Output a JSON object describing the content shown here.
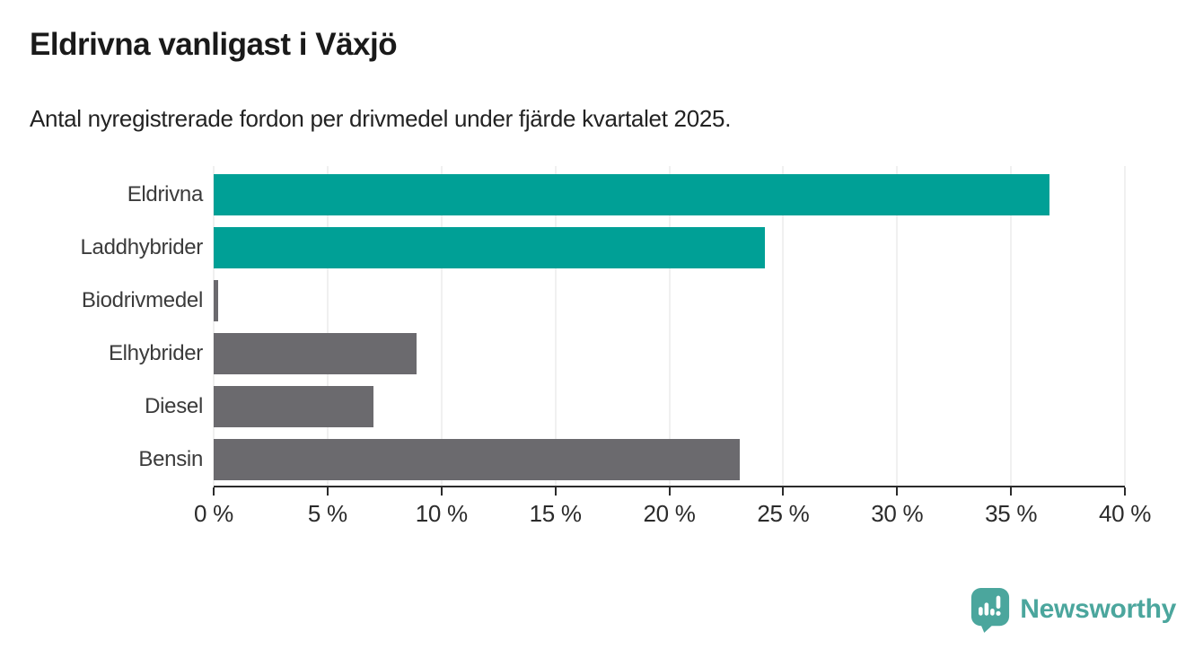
{
  "chart_data": {
    "type": "bar",
    "orientation": "horizontal",
    "title": "Eldrivna vanligast i Växjö",
    "subtitle": "Antal nyregistrerade fordon per drivmedel under fjärde kvartalet 2025.",
    "categories": [
      "Eldrivna",
      "Laddhybrider",
      "Biodrivmedel",
      "Elhybrider",
      "Diesel",
      "Bensin"
    ],
    "values": [
      36.7,
      24.2,
      0.2,
      8.9,
      7.0,
      23.1
    ],
    "bar_colors": [
      "#00A096",
      "#00A096",
      "#6B6A6E",
      "#6B6A6E",
      "#6B6A6E",
      "#6B6A6E"
    ],
    "xlim": [
      0,
      40
    ],
    "xticks": [
      {
        "value": 0,
        "label": "0 %"
      },
      {
        "value": 5,
        "label": "5 %"
      },
      {
        "value": 10,
        "label": "10 %"
      },
      {
        "value": 15,
        "label": "15 %"
      },
      {
        "value": 20,
        "label": "20 %"
      },
      {
        "value": 25,
        "label": "25 %"
      },
      {
        "value": 30,
        "label": "30 %"
      },
      {
        "value": 35,
        "label": "35 %"
      },
      {
        "value": 40,
        "label": "40 %"
      }
    ],
    "grid": "vertical",
    "legend": "none",
    "colors": {
      "accent_teal": "#00A096",
      "neutral_gray": "#6B6A6E",
      "gridline": "#e0e0e0",
      "axis": "#2b2b2b",
      "title_text": "#1a1a1a",
      "label_text": "#3b3b3b"
    }
  },
  "branding": {
    "name": "Newsworthy",
    "color": "#4BA69D",
    "icon": "newsworthy-speech-bubble-chart-icon"
  }
}
